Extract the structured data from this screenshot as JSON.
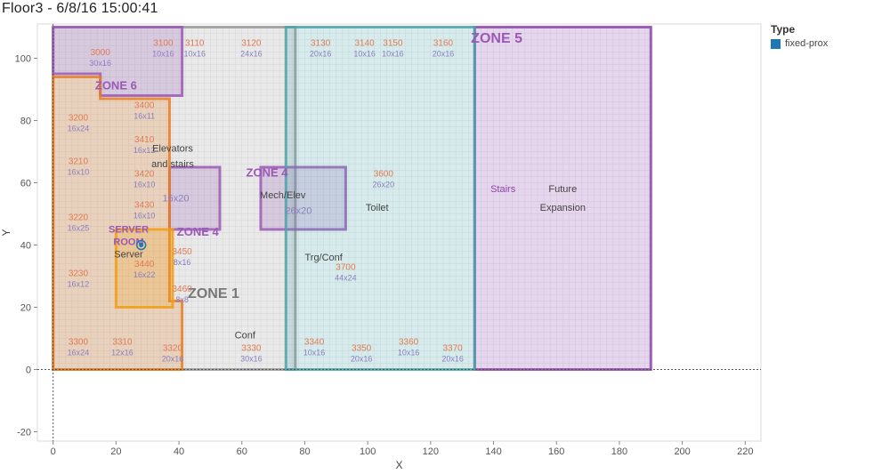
{
  "title": "Floor3 - 6/8/16 15:00:41",
  "legend": {
    "title": "Type",
    "items": [
      {
        "label": "fixed-prox",
        "color": "#1f77b4"
      }
    ]
  },
  "chart_data": {
    "type": "scatter",
    "xlabel": "X",
    "ylabel": "Y",
    "xlim": [
      -5,
      225
    ],
    "ylim": [
      -23,
      111
    ],
    "xticks": [
      0,
      20,
      40,
      60,
      80,
      100,
      120,
      140,
      160,
      180,
      200,
      220
    ],
    "yticks": [
      -20,
      0,
      20,
      40,
      60,
      80,
      100
    ],
    "grid": true,
    "legend_position": "top-right",
    "series": [
      {
        "name": "fixed-prox",
        "color": "#1f77b4",
        "points": [
          {
            "x": 28,
            "y": 40
          }
        ]
      }
    ],
    "background": "floor plan",
    "zones": [
      {
        "label": "ZONE 1",
        "color": "#999999",
        "polygon": [
          [
            0,
            0
          ],
          [
            0,
            110
          ],
          [
            77,
            110
          ],
          [
            77,
            0
          ]
        ]
      },
      {
        "label": "ZONE 4",
        "color": "#9b59b6",
        "polygon": [
          [
            66,
            45
          ],
          [
            66,
            65
          ],
          [
            93,
            65
          ],
          [
            93,
            45
          ]
        ]
      },
      {
        "label": "ZONE 4",
        "color": "#9b59b6",
        "polygon": [
          [
            37,
            45
          ],
          [
            37,
            65
          ],
          [
            53,
            65
          ],
          [
            53,
            45
          ]
        ]
      },
      {
        "label": "ZONE 5",
        "color": "#8e44ad",
        "polygon": [
          [
            134,
            0
          ],
          [
            134,
            110
          ],
          [
            190,
            110
          ],
          [
            190,
            0
          ]
        ]
      },
      {
        "label": "ZONE 6",
        "color": "#9b59b6",
        "polygon": [
          [
            0,
            95
          ],
          [
            0,
            110
          ],
          [
            41,
            110
          ],
          [
            41,
            88
          ],
          [
            15,
            88
          ],
          [
            15,
            95
          ]
        ]
      },
      {
        "label": "",
        "color": "#e67e22",
        "polygon": [
          [
            0,
            0
          ],
          [
            0,
            94
          ],
          [
            15,
            94
          ],
          [
            15,
            87
          ],
          [
            37,
            87
          ],
          [
            37,
            22
          ],
          [
            41,
            22
          ],
          [
            41,
            0
          ]
        ]
      },
      {
        "label": "",
        "color": "#4aa3a8",
        "polygon": [
          [
            74,
            0
          ],
          [
            74,
            110
          ],
          [
            134,
            110
          ],
          [
            134,
            0
          ]
        ]
      },
      {
        "label": "",
        "color": "#f39c12",
        "polygon": [
          [
            20,
            20
          ],
          [
            20,
            45
          ],
          [
            38,
            45
          ],
          [
            38,
            20
          ]
        ]
      }
    ],
    "rooms": [
      {
        "label": "3000",
        "size": "30x16",
        "x": 15,
        "y": 101
      },
      {
        "label": "3100",
        "size": "10x16",
        "x": 35,
        "y": 104
      },
      {
        "label": "3110",
        "size": "10x16",
        "x": 45,
        "y": 104
      },
      {
        "label": "3120",
        "size": "24x16",
        "x": 63,
        "y": 104
      },
      {
        "label": "3130",
        "size": "20x16",
        "x": 85,
        "y": 104
      },
      {
        "label": "3140",
        "size": "10x16",
        "x": 99,
        "y": 104
      },
      {
        "label": "3150",
        "size": "10x16",
        "x": 108,
        "y": 104
      },
      {
        "label": "3160",
        "size": "20x16",
        "x": 124,
        "y": 104
      },
      {
        "label": "3200",
        "size": "16x24",
        "x": 8,
        "y": 80
      },
      {
        "label": "3210",
        "size": "16x10",
        "x": 8,
        "y": 66
      },
      {
        "label": "3220",
        "size": "16x25",
        "x": 8,
        "y": 48
      },
      {
        "label": "3230",
        "size": "16x12",
        "x": 8,
        "y": 30
      },
      {
        "label": "3300",
        "size": "16x24",
        "x": 8,
        "y": 8
      },
      {
        "label": "3310",
        "size": "12x16",
        "x": 22,
        "y": 8
      },
      {
        "label": "3320",
        "size": "20x16",
        "x": 38,
        "y": 6
      },
      {
        "label": "3330",
        "size": "30x16",
        "x": 63,
        "y": 6
      },
      {
        "label": "3340",
        "size": "10x16",
        "x": 83,
        "y": 8
      },
      {
        "label": "3350",
        "size": "20x16",
        "x": 98,
        "y": 6
      },
      {
        "label": "3360",
        "size": "10x16",
        "x": 113,
        "y": 8
      },
      {
        "label": "3370",
        "size": "20x16",
        "x": 127,
        "y": 6
      },
      {
        "label": "3400",
        "size": "16x11",
        "x": 29,
        "y": 84
      },
      {
        "label": "3410",
        "size": "16x12",
        "x": 29,
        "y": 73
      },
      {
        "label": "3420",
        "size": "16x10",
        "x": 29,
        "y": 62
      },
      {
        "label": "3430",
        "size": "16x10",
        "x": 29,
        "y": 52
      },
      {
        "label": "3440",
        "size": "16x22",
        "x": 29,
        "y": 33
      },
      {
        "label": "3450",
        "size": "8x16",
        "x": 41,
        "y": 37
      },
      {
        "label": "3460",
        "size": "8x8",
        "x": 41,
        "y": 25
      },
      {
        "label": "3600",
        "size": "26x20",
        "x": 105,
        "y": 62
      },
      {
        "label": "3700",
        "size": "44x24",
        "x": 93,
        "y": 32
      }
    ],
    "annotations": [
      {
        "text": "ZONE 5",
        "x": 141,
        "y": 105,
        "color": "#9b59b6"
      },
      {
        "text": "ZONE 6",
        "x": 20,
        "y": 90,
        "color": "#9b59b6"
      },
      {
        "text": "ZONE 4",
        "x": 68,
        "y": 62,
        "color": "#9b59b6"
      },
      {
        "text": "ZONE 4",
        "x": 46,
        "y": 43,
        "color": "#9b59b6"
      },
      {
        "text": "ZONE 1",
        "x": 51,
        "y": 23,
        "color": "#777777"
      },
      {
        "text": "Elevators",
        "x": 38,
        "y": 70,
        "color": "#444444"
      },
      {
        "text": "and stairs",
        "x": 38,
        "y": 65,
        "color": "#444444"
      },
      {
        "text": "Mech/Elev",
        "x": 73,
        "y": 55,
        "color": "#444444"
      },
      {
        "text": "26x20",
        "x": 78,
        "y": 50,
        "color": "#8a7fbf"
      },
      {
        "text": "Toilet",
        "x": 103,
        "y": 51,
        "color": "#444444"
      },
      {
        "text": "Trg/Conf",
        "x": 86,
        "y": 35,
        "color": "#444444"
      },
      {
        "text": "Conf",
        "x": 61,
        "y": 10,
        "color": "#444444"
      },
      {
        "text": "Server",
        "x": 24,
        "y": 36,
        "color": "#444444"
      },
      {
        "text": "SERVER",
        "x": 24,
        "y": 44,
        "color": "#9b59b6"
      },
      {
        "text": "ROOM",
        "x": 24,
        "y": 40,
        "color": "#9b59b6"
      },
      {
        "text": "Stairs",
        "x": 143,
        "y": 57,
        "color": "#8e44ad"
      },
      {
        "text": "Future",
        "x": 162,
        "y": 57,
        "color": "#444444"
      },
      {
        "text": "Expansion",
        "x": 162,
        "y": 51,
        "color": "#444444"
      },
      {
        "text": "16x20",
        "x": 39,
        "y": 54,
        "color": "#8a7fbf"
      }
    ]
  }
}
